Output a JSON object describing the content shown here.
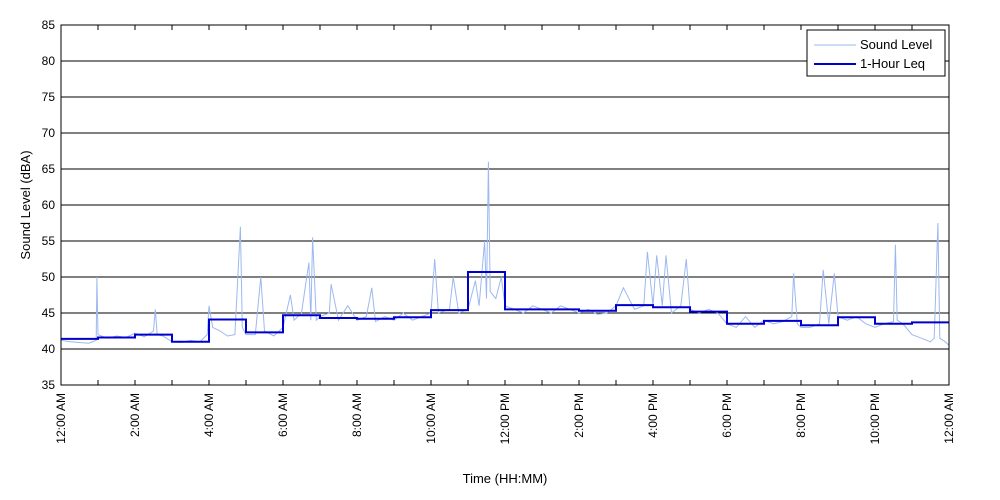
{
  "chart_data": {
    "type": "line",
    "xlabel": "Time (HH:MM)",
    "ylabel": "Sound Level (dBA)",
    "ylim": [
      35,
      85
    ],
    "yticks": [
      35,
      40,
      45,
      50,
      55,
      60,
      65,
      70,
      75,
      80,
      85
    ],
    "xlim_hours": [
      0,
      24
    ],
    "xtick_hours": [
      0,
      1,
      2,
      3,
      4,
      5,
      6,
      7,
      8,
      9,
      10,
      11,
      12,
      13,
      14,
      15,
      16,
      17,
      18,
      19,
      20,
      21,
      22,
      23,
      24
    ],
    "xtick_labels": [
      {
        "hour": 0,
        "label": "12:00 AM"
      },
      {
        "hour": 2,
        "label": "2:00 AM"
      },
      {
        "hour": 4,
        "label": "4:00 AM"
      },
      {
        "hour": 6,
        "label": "6:00 AM"
      },
      {
        "hour": 8,
        "label": "8:00 AM"
      },
      {
        "hour": 10,
        "label": "10:00 AM"
      },
      {
        "hour": 12,
        "label": "12:00 PM"
      },
      {
        "hour": 14,
        "label": "2:00 PM"
      },
      {
        "hour": 16,
        "label": "4:00 PM"
      },
      {
        "hour": 18,
        "label": "6:00 PM"
      },
      {
        "hour": 20,
        "label": "8:00 PM"
      },
      {
        "hour": 22,
        "label": "10:00 PM"
      },
      {
        "hour": 24,
        "label": "12:00 AM"
      }
    ],
    "grid": "horizontal",
    "legend_position": "top-right",
    "series": [
      {
        "name": "Sound Level",
        "style": "thin-line",
        "color": "#9db8f0",
        "points": [
          [
            0.0,
            41.2
          ],
          [
            0.25,
            41.0
          ],
          [
            0.5,
            40.9
          ],
          [
            0.75,
            40.8
          ],
          [
            0.95,
            41.2
          ],
          [
            0.97,
            50.0
          ],
          [
            1.0,
            42.0
          ],
          [
            1.25,
            41.5
          ],
          [
            1.5,
            41.8
          ],
          [
            1.75,
            41.6
          ],
          [
            2.0,
            42.2
          ],
          [
            2.25,
            41.7
          ],
          [
            2.5,
            42.5
          ],
          [
            2.55,
            45.5
          ],
          [
            2.6,
            42.0
          ],
          [
            2.75,
            41.8
          ],
          [
            3.0,
            41.0
          ],
          [
            3.25,
            40.9
          ],
          [
            3.5,
            41.2
          ],
          [
            3.75,
            41.0
          ],
          [
            3.95,
            42.0
          ],
          [
            4.0,
            46.0
          ],
          [
            4.1,
            43.0
          ],
          [
            4.3,
            42.5
          ],
          [
            4.5,
            41.8
          ],
          [
            4.7,
            42.0
          ],
          [
            4.85,
            57.0
          ],
          [
            4.9,
            43.0
          ],
          [
            5.0,
            42.0
          ],
          [
            5.25,
            42.0
          ],
          [
            5.4,
            50.0
          ],
          [
            5.5,
            42.5
          ],
          [
            5.75,
            41.8
          ],
          [
            6.0,
            43.0
          ],
          [
            6.2,
            47.5
          ],
          [
            6.3,
            44.0
          ],
          [
            6.5,
            45.0
          ],
          [
            6.7,
            52.0
          ],
          [
            6.75,
            44.0
          ],
          [
            6.8,
            55.5
          ],
          [
            6.9,
            44.0
          ],
          [
            7.0,
            44.5
          ],
          [
            7.25,
            45.0
          ],
          [
            7.3,
            49.0
          ],
          [
            7.5,
            44.0
          ],
          [
            7.75,
            46.0
          ],
          [
            8.0,
            44.0
          ],
          [
            8.25,
            44.5
          ],
          [
            8.4,
            48.5
          ],
          [
            8.5,
            43.8
          ],
          [
            8.75,
            44.5
          ],
          [
            9.0,
            44.0
          ],
          [
            9.25,
            45.0
          ],
          [
            9.5,
            44.0
          ],
          [
            9.75,
            44.5
          ],
          [
            10.0,
            45.0
          ],
          [
            10.1,
            52.5
          ],
          [
            10.2,
            45.0
          ],
          [
            10.5,
            45.5
          ],
          [
            10.6,
            50.0
          ],
          [
            10.75,
            45.0
          ],
          [
            11.0,
            45.5
          ],
          [
            11.2,
            49.5
          ],
          [
            11.3,
            46.0
          ],
          [
            11.45,
            55.0
          ],
          [
            11.5,
            47.0
          ],
          [
            11.55,
            66.0
          ],
          [
            11.6,
            48.0
          ],
          [
            11.75,
            47.0
          ],
          [
            11.9,
            50.0
          ],
          [
            12.0,
            46.0
          ],
          [
            12.25,
            45.5
          ],
          [
            12.5,
            45.0
          ],
          [
            12.75,
            46.0
          ],
          [
            13.0,
            45.5
          ],
          [
            13.25,
            45.0
          ],
          [
            13.5,
            46.0
          ],
          [
            13.75,
            45.5
          ],
          [
            14.0,
            45.0
          ],
          [
            14.25,
            45.5
          ],
          [
            14.5,
            44.8
          ],
          [
            14.75,
            45.0
          ],
          [
            15.0,
            46.0
          ],
          [
            15.2,
            48.5
          ],
          [
            15.5,
            45.5
          ],
          [
            15.75,
            46.0
          ],
          [
            15.85,
            53.5
          ],
          [
            16.0,
            46.0
          ],
          [
            16.1,
            53.0
          ],
          [
            16.25,
            46.0
          ],
          [
            16.35,
            53.0
          ],
          [
            16.5,
            45.0
          ],
          [
            16.75,
            46.0
          ],
          [
            16.9,
            52.5
          ],
          [
            17.0,
            45.5
          ],
          [
            17.25,
            45.0
          ],
          [
            17.5,
            45.5
          ],
          [
            17.75,
            45.0
          ],
          [
            18.0,
            43.5
          ],
          [
            18.25,
            43.0
          ],
          [
            18.5,
            44.5
          ],
          [
            18.75,
            43.0
          ],
          [
            19.0,
            44.0
          ],
          [
            19.25,
            43.5
          ],
          [
            19.5,
            43.8
          ],
          [
            19.75,
            44.5
          ],
          [
            19.8,
            50.5
          ],
          [
            19.9,
            43.5
          ],
          [
            20.0,
            43.0
          ],
          [
            20.25,
            43.0
          ],
          [
            20.5,
            43.5
          ],
          [
            20.6,
            51.0
          ],
          [
            20.75,
            43.5
          ],
          [
            20.9,
            50.5
          ],
          [
            21.0,
            44.5
          ],
          [
            21.25,
            44.0
          ],
          [
            21.5,
            44.5
          ],
          [
            21.75,
            43.5
          ],
          [
            22.0,
            43.0
          ],
          [
            22.25,
            43.5
          ],
          [
            22.5,
            43.8
          ],
          [
            22.55,
            54.5
          ],
          [
            22.6,
            44.0
          ],
          [
            22.75,
            43.5
          ],
          [
            23.0,
            42.0
          ],
          [
            23.25,
            41.5
          ],
          [
            23.5,
            41.0
          ],
          [
            23.6,
            41.5
          ],
          [
            23.7,
            57.5
          ],
          [
            23.75,
            41.5
          ],
          [
            23.9,
            41.0
          ],
          [
            24.0,
            40.5
          ]
        ]
      },
      {
        "name": "1-Hour Leq",
        "style": "step",
        "color": "#0000cc",
        "hourly_values": [
          41.4,
          41.6,
          42.0,
          41.0,
          44.1,
          42.3,
          44.7,
          44.3,
          44.2,
          44.4,
          45.4,
          50.7,
          45.5,
          45.5,
          45.3,
          46.1,
          45.8,
          45.2,
          43.5,
          43.9,
          43.3,
          44.4,
          43.5,
          43.7
        ]
      }
    ]
  }
}
